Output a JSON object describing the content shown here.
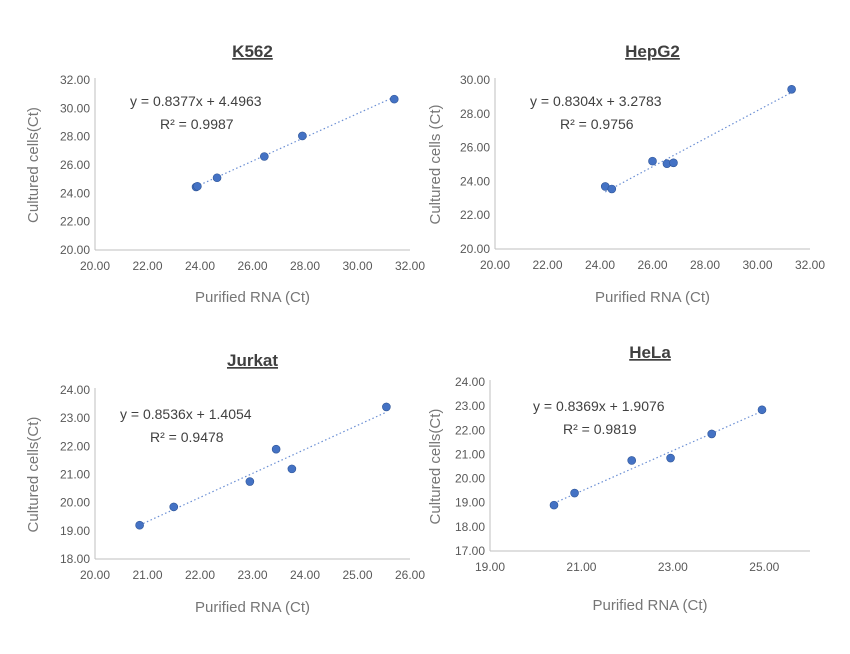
{
  "chart_data": [
    {
      "type": "scatter",
      "title": "K562",
      "xlabel": "Purified RNA (Ct)",
      "ylabel": "Cultured cells(Ct)",
      "xlim": [
        20,
        32
      ],
      "ylim": [
        20,
        32
      ],
      "xticks": [
        "20.00",
        "22.00",
        "24.00",
        "26.00",
        "28.00",
        "30.00",
        "32.00"
      ],
      "yticks": [
        "20.00",
        "22.00",
        "24.00",
        "26.00",
        "28.00",
        "30.00",
        "32.00"
      ],
      "equation": "y = 0.8377x + 4.4963",
      "r2_text": "R² = 0.9987",
      "trendline": {
        "slope": 0.8377,
        "intercept": 4.4963
      },
      "points": [
        {
          "x": 23.85,
          "y": 24.45
        },
        {
          "x": 23.9,
          "y": 24.5
        },
        {
          "x": 24.65,
          "y": 25.1
        },
        {
          "x": 26.45,
          "y": 26.6
        },
        {
          "x": 27.9,
          "y": 28.05
        },
        {
          "x": 31.4,
          "y": 30.65
        }
      ]
    },
    {
      "type": "scatter",
      "title": "HepG2",
      "xlabel": "Purified RNA (Ct)",
      "ylabel": "Cultured cells (Ct)",
      "xlim": [
        20,
        32
      ],
      "ylim": [
        20,
        30
      ],
      "xticks": [
        "20.00",
        "22.00",
        "24.00",
        "26.00",
        "28.00",
        "30.00",
        "32.00"
      ],
      "yticks": [
        "20.00",
        "22.00",
        "24.00",
        "26.00",
        "28.00",
        "30.00"
      ],
      "equation": "y = 0.8304x + 3.2783",
      "r2_text": "R² = 0.9756",
      "trendline": {
        "slope": 0.8304,
        "intercept": 3.2783
      },
      "points": [
        {
          "x": 24.2,
          "y": 23.7
        },
        {
          "x": 24.45,
          "y": 23.55
        },
        {
          "x": 26.0,
          "y": 25.2
        },
        {
          "x": 26.55,
          "y": 25.05
        },
        {
          "x": 26.8,
          "y": 25.1
        },
        {
          "x": 31.3,
          "y": 29.45
        }
      ]
    },
    {
      "type": "scatter",
      "title": "Jurkat",
      "xlabel": "Purified RNA (Ct)",
      "ylabel": "Cultured cells(Ct)",
      "xlim": [
        20,
        26
      ],
      "ylim": [
        18,
        24
      ],
      "xticks": [
        "20.00",
        "21.00",
        "22.00",
        "23.00",
        "24.00",
        "25.00",
        "26.00"
      ],
      "yticks": [
        "18.00",
        "19.00",
        "20.00",
        "21.00",
        "22.00",
        "23.00",
        "24.00"
      ],
      "equation": "y = 0.8536x + 1.4054",
      "r2_text": "R² = 0.9478",
      "trendline": {
        "slope": 0.8536,
        "intercept": 1.4054
      },
      "points": [
        {
          "x": 20.85,
          "y": 19.2
        },
        {
          "x": 21.5,
          "y": 19.85
        },
        {
          "x": 22.95,
          "y": 20.75
        },
        {
          "x": 23.45,
          "y": 21.9
        },
        {
          "x": 23.75,
          "y": 21.2
        },
        {
          "x": 25.55,
          "y": 23.4
        }
      ]
    },
    {
      "type": "scatter",
      "title": "HeLa",
      "xlabel": "Purified RNA (Ct)",
      "ylabel": "Cultured cells(Ct)",
      "xlim": [
        19,
        26
      ],
      "ylim": [
        17,
        24
      ],
      "xticks": [
        "19.00",
        "21.00",
        "23.00",
        "25.00"
      ],
      "xtick_values": [
        19,
        21,
        23,
        25
      ],
      "yticks": [
        "17.00",
        "18.00",
        "19.00",
        "20.00",
        "21.00",
        "22.00",
        "23.00",
        "24.00"
      ],
      "equation": "y = 0.8369x + 1.9076",
      "r2_text": "R² = 0.9819",
      "trendline": {
        "slope": 0.8369,
        "intercept": 1.9076
      },
      "points": [
        {
          "x": 20.4,
          "y": 18.9
        },
        {
          "x": 20.85,
          "y": 19.4
        },
        {
          "x": 22.1,
          "y": 20.75
        },
        {
          "x": 22.95,
          "y": 20.85
        },
        {
          "x": 23.85,
          "y": 21.85
        },
        {
          "x": 24.95,
          "y": 22.85
        }
      ]
    }
  ]
}
